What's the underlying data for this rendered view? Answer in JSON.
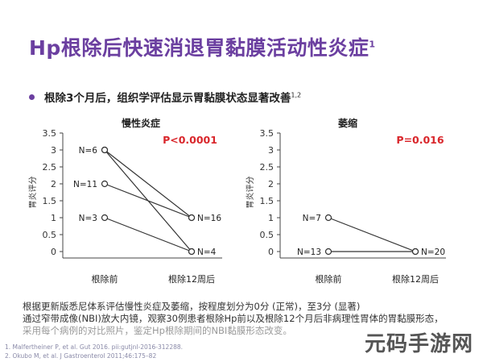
{
  "header": {
    "title": "Hp根除后快速消退胃黏膜活动性炎症",
    "title_sup": "1"
  },
  "bullet": {
    "text": "根除3个月后，组织学评估显示胃黏膜状态显著改善",
    "sup": "1,2"
  },
  "chart_data": [
    {
      "type": "line",
      "title": "慢性炎症",
      "annotation": "P<0.0001",
      "annotation_color": "#d9262b",
      "ylabel": "胃炎评分",
      "categories": [
        "根除前",
        "根除12周后"
      ],
      "ylim": [
        0,
        3.5
      ],
      "yticks": [
        "0",
        "0.5",
        "1",
        "1.5",
        "2",
        "2.5",
        "3",
        "3.5"
      ],
      "grid": false,
      "series": [
        {
          "values": [
            3,
            1
          ]
        },
        {
          "values": [
            3,
            0
          ]
        },
        {
          "values": [
            2,
            1
          ]
        },
        {
          "values": [
            1,
            0
          ]
        }
      ],
      "left_labels": [
        {
          "text": "N=6",
          "y": 3
        },
        {
          "text": "N=11",
          "y": 2
        },
        {
          "text": "N=3",
          "y": 1
        }
      ],
      "right_labels": [
        {
          "text": "N=16",
          "y": 1
        },
        {
          "text": "N=4",
          "y": 0
        }
      ]
    },
    {
      "type": "line",
      "title": "萎缩",
      "annotation": "P=0.016",
      "annotation_color": "#d9262b",
      "ylabel": "胃炎评分",
      "categories": [
        "根除前",
        "根除12周后"
      ],
      "ylim": [
        0,
        3.5
      ],
      "yticks": [
        "0",
        "0.5",
        "1",
        "1.5",
        "2",
        "2.5",
        "3",
        "3.5"
      ],
      "grid": false,
      "series": [
        {
          "values": [
            1,
            0
          ]
        },
        {
          "values": [
            0,
            0
          ]
        }
      ],
      "left_labels": [
        {
          "text": "N=7",
          "y": 1
        },
        {
          "text": "N=13",
          "y": 0
        }
      ],
      "right_labels": [
        {
          "text": "N=20",
          "y": 0
        }
      ]
    }
  ],
  "caption": {
    "line1": "根据更新版悉尼体系评估慢性炎症及萎缩，按程度划分为0分 (正常)，至3分 (显著)",
    "line2": "通过窄带成像(NBI)放大内镜，观察30例患者根除Hp前以及根除12个月后非病理性胃体的胃黏膜形态，",
    "line3": "采用每个病例的对比照片，鉴定Hp根除期间的NBI黏膜形态改变。"
  },
  "references": [
    "1.    Malfertheiner P, et al. Gut 2016. pii:gutjnl-2016-312288.",
    "2.    Okubo M, et al. J Gastroenterol 2011;46:175–82"
  ],
  "watermark": "元码手游网",
  "colors": {
    "title": "#6b3fa0",
    "accent_red": "#d9262b",
    "axis": "#444444",
    "marker_fill": "#ffffff"
  }
}
